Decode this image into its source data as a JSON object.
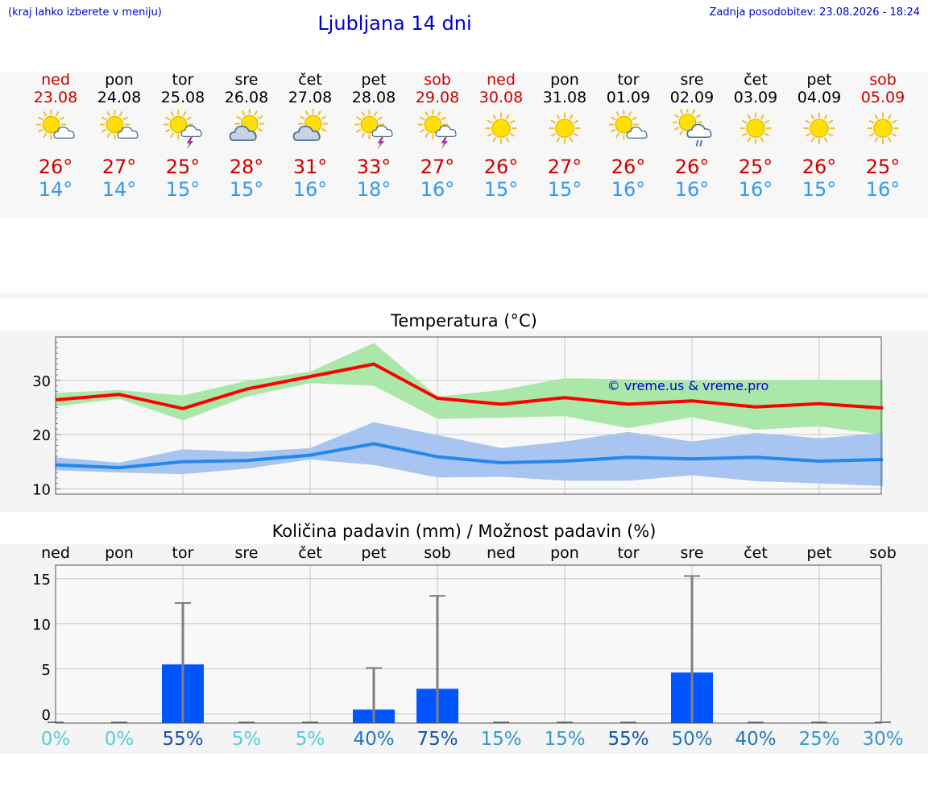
{
  "header": {
    "hint": "(kraj lahko izberete v meniju)",
    "title": "Ljubljana 14 dni",
    "updated": "Zadnja posodobitev: 23.08.2026 - 18:24"
  },
  "colors": {
    "weekend": "#cc0000",
    "weekday": "#000000",
    "tmax": "#ff0000",
    "tmin": "#2288ee",
    "tmax_band": "#aae8aa",
    "tmin_band": "#a8c4f0",
    "precip_bar": "#0055ff",
    "errorbar": "#808080",
    "credit": "#0000cc"
  },
  "days": [
    {
      "name": "ned",
      "date": "23.08",
      "weekend": true,
      "icon": "sun-cloud-icon",
      "tmax": "26°",
      "tmin": "14°"
    },
    {
      "name": "pon",
      "date": "24.08",
      "weekend": false,
      "icon": "sun-cloud-icon",
      "tmax": "27°",
      "tmin": "14°"
    },
    {
      "name": "tor",
      "date": "25.08",
      "weekend": false,
      "icon": "sun-storm-icon",
      "tmax": "25°",
      "tmin": "15°"
    },
    {
      "name": "sre",
      "date": "26.08",
      "weekend": false,
      "icon": "cloud-sun-icon",
      "tmax": "28°",
      "tmin": "15°"
    },
    {
      "name": "čet",
      "date": "27.08",
      "weekend": false,
      "icon": "cloud-sun-icon",
      "tmax": "31°",
      "tmin": "16°"
    },
    {
      "name": "pet",
      "date": "28.08",
      "weekend": false,
      "icon": "sun-storm-icon",
      "tmax": "33°",
      "tmin": "18°"
    },
    {
      "name": "sob",
      "date": "29.08",
      "weekend": true,
      "icon": "sun-storm-icon",
      "tmax": "27°",
      "tmin": "16°"
    },
    {
      "name": "ned",
      "date": "30.08",
      "weekend": true,
      "icon": "sun-icon",
      "tmax": "26°",
      "tmin": "15°"
    },
    {
      "name": "pon",
      "date": "31.08",
      "weekend": false,
      "icon": "sun-icon",
      "tmax": "27°",
      "tmin": "15°"
    },
    {
      "name": "tor",
      "date": "01.09",
      "weekend": false,
      "icon": "sun-cloud-icon",
      "tmax": "26°",
      "tmin": "16°"
    },
    {
      "name": "sre",
      "date": "02.09",
      "weekend": false,
      "icon": "sun-rain-icon",
      "tmax": "26°",
      "tmin": "16°"
    },
    {
      "name": "čet",
      "date": "03.09",
      "weekend": false,
      "icon": "sun-icon",
      "tmax": "25°",
      "tmin": "16°"
    },
    {
      "name": "pet",
      "date": "04.09",
      "weekend": false,
      "icon": "sun-icon",
      "tmax": "26°",
      "tmin": "15°"
    },
    {
      "name": "sob",
      "date": "05.09",
      "weekend": true,
      "icon": "sun-icon",
      "tmax": "25°",
      "tmin": "16°"
    }
  ],
  "chart_data": [
    {
      "type": "line",
      "title": "Temperatura (°C)",
      "credit": "© vreme.us & vreme.pro",
      "ylim": [
        9,
        38
      ],
      "yticks": [
        10,
        20,
        30
      ],
      "grid": true,
      "series": [
        {
          "values": [
            26.4,
            27.4,
            24.8,
            28.4,
            30.7,
            33.0,
            26.7,
            25.6,
            26.8,
            25.6,
            26.2,
            25.1,
            25.7,
            24.9
          ],
          "low": [
            25.2,
            26.6,
            22.6,
            27.0,
            29.5,
            29.0,
            22.9,
            23.1,
            23.4,
            21.2,
            23.2,
            20.9,
            21.5,
            20.0
          ],
          "high": [
            27.7,
            28.2,
            27.2,
            29.9,
            31.6,
            36.9,
            27.0,
            28.2,
            30.4,
            30.2,
            29.9,
            30.0,
            30.1,
            30.0
          ]
        },
        {
          "values": [
            14.4,
            13.9,
            15.0,
            15.2,
            16.2,
            18.3,
            15.9,
            14.8,
            15.1,
            15.8,
            15.5,
            15.8,
            15.1,
            15.4
          ],
          "low": [
            13.4,
            13.0,
            12.7,
            13.7,
            15.4,
            14.4,
            12.1,
            12.2,
            11.5,
            11.5,
            12.5,
            11.4,
            11.0,
            10.5
          ],
          "high": [
            15.8,
            14.8,
            17.3,
            16.8,
            17.5,
            22.3,
            19.9,
            17.5,
            18.7,
            20.5,
            18.7,
            20.3,
            19.3,
            20.3
          ]
        }
      ]
    },
    {
      "type": "bar",
      "title": "Količina padavin (mm) / Možnost padavin (%)",
      "categories": [
        "ned",
        "pon",
        "tor",
        "sre",
        "čet",
        "pet",
        "sob",
        "ned",
        "pon",
        "tor",
        "sre",
        "čet",
        "pet",
        "sob"
      ],
      "ylim": [
        -1,
        16.5
      ],
      "yticks": [
        0,
        5,
        10,
        15
      ],
      "grid": true,
      "values": [
        0,
        0,
        5.5,
        0,
        0,
        0.5,
        2.8,
        0,
        0,
        0,
        4.6,
        0,
        0,
        0
      ],
      "error_high": [
        0,
        0,
        12.3,
        0,
        0,
        5.1,
        13.1,
        0,
        0,
        0,
        15.3,
        0,
        0,
        0
      ],
      "probability": [
        "0%",
        "0%",
        "55%",
        "5%",
        "5%",
        "40%",
        "75%",
        "15%",
        "15%",
        "55%",
        "50%",
        "40%",
        "25%",
        "30%"
      ],
      "probability_colors": [
        "#55ccdd",
        "#55ccdd",
        "#1155aa",
        "#55ccdd",
        "#55ccdd",
        "#2277bb",
        "#1155aa",
        "#3399cc",
        "#3399cc",
        "#1155aa",
        "#2277bb",
        "#2277bb",
        "#3399cc",
        "#3399cc"
      ]
    }
  ]
}
